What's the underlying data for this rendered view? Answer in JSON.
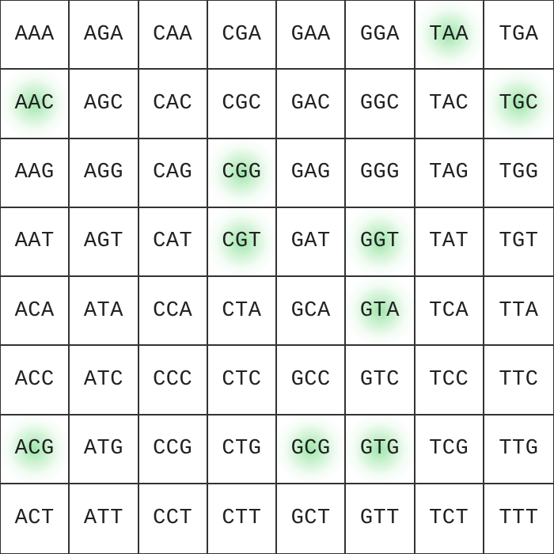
{
  "grid": {
    "rows": [
      [
        "AAA",
        "AGA",
        "CAA",
        "CGA",
        "GAA",
        "GGA",
        "TAA",
        "TGA"
      ],
      [
        "AAC",
        "AGC",
        "CAC",
        "CGC",
        "GAC",
        "GGC",
        "TAC",
        "TGC"
      ],
      [
        "AAG",
        "AGG",
        "CAG",
        "CGG",
        "GAG",
        "GGG",
        "TAG",
        "TGG"
      ],
      [
        "AAT",
        "AGT",
        "CAT",
        "CGT",
        "GAT",
        "GGT",
        "TAT",
        "TGT"
      ],
      [
        "ACA",
        "ATA",
        "CCA",
        "CTA",
        "GCA",
        "GTA",
        "TCA",
        "TTA"
      ],
      [
        "ACC",
        "ATC",
        "CCC",
        "CTC",
        "GCC",
        "GTC",
        "TCC",
        "TTC"
      ],
      [
        "ACG",
        "ATG",
        "CCG",
        "CTG",
        "GCG",
        "GTG",
        "TCG",
        "TTG"
      ],
      [
        "ACT",
        "ATT",
        "CCT",
        "CTT",
        "GCT",
        "GTT",
        "TCT",
        "TTT"
      ]
    ],
    "highlighted": [
      "TAA",
      "AAC",
      "TGC",
      "CGG",
      "CGT",
      "GGT",
      "GTA",
      "ACG",
      "GCG",
      "GTG"
    ],
    "highlight_color": "#62d678"
  }
}
